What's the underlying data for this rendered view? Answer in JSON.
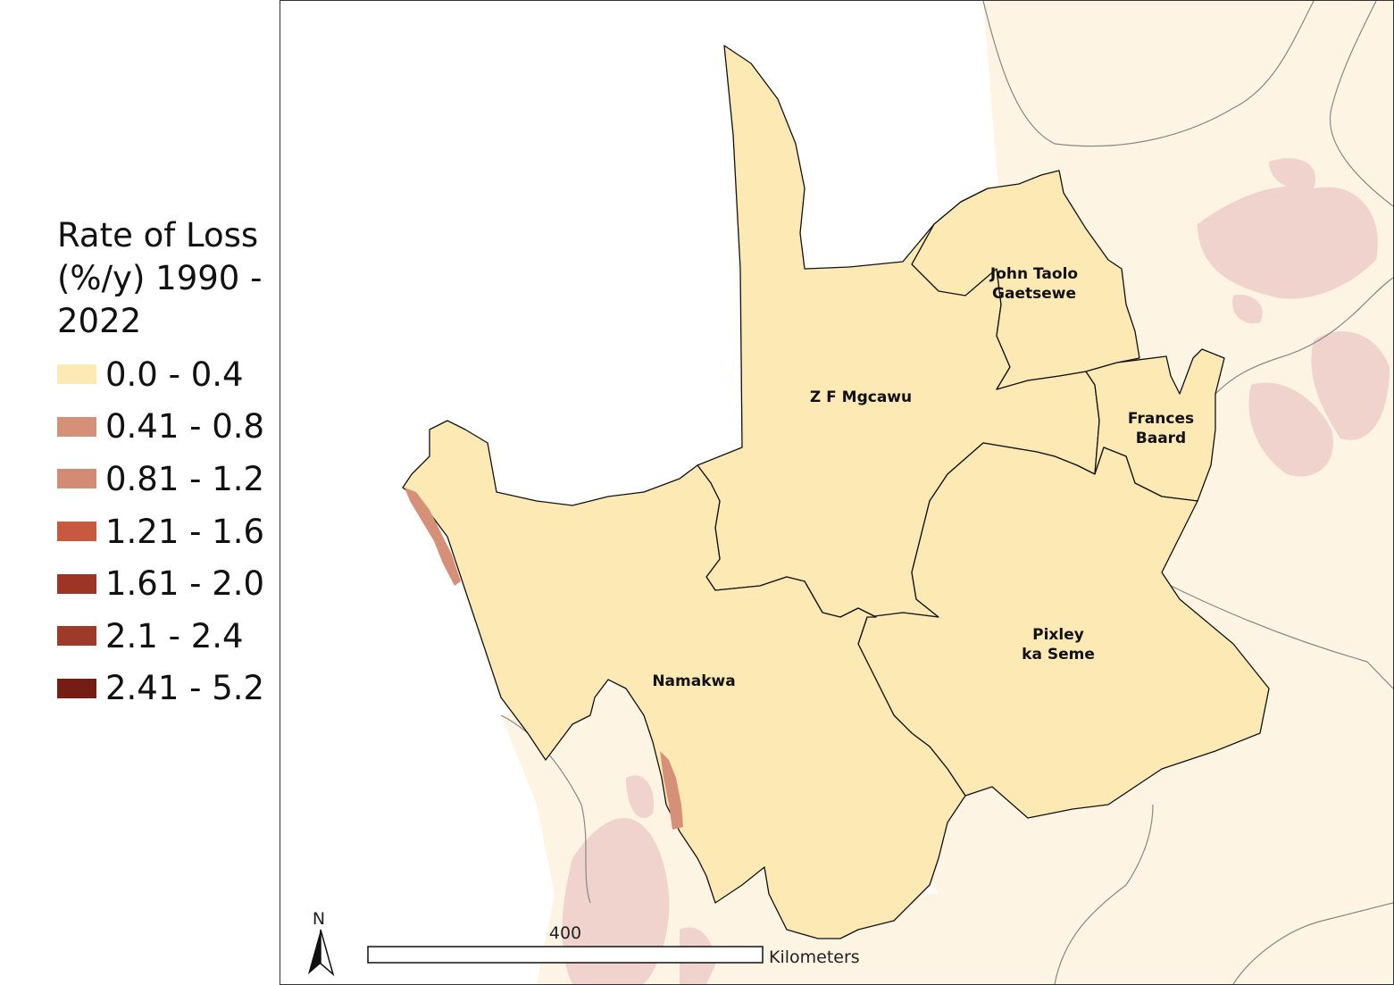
{
  "legend": {
    "title_lines": [
      "Rate of Loss",
      "(%/y) 1990 -",
      "2022"
    ],
    "items": [
      {
        "label": "0.0 - 0.4",
        "color": "#fde9b3"
      },
      {
        "label": "0.41 - 0.8",
        "color": "#d69078"
      },
      {
        "label": "0.81 - 1.2",
        "color": "#d48b73"
      },
      {
        "label": "1.21 - 1.6",
        "color": "#c75a3e"
      },
      {
        "label": "1.61 - 2.0",
        "color": "#9d3527"
      },
      {
        "label": "2.1 - 2.4",
        "color": "#9e3a2a"
      },
      {
        "label": "2.41 - 5.2",
        "color": "#751c14"
      }
    ]
  },
  "map": {
    "colors": {
      "province_fill": "#fde9b3",
      "surrounding_fill": "#fdf4e3",
      "outside_loss_fill": "#f0d3cc",
      "boundary_stroke": "#111111",
      "outside_boundary_stroke": "#888888"
    },
    "regions": [
      {
        "key": "zf_mgcawu",
        "lines": [
          "Z F Mgcawu"
        ]
      },
      {
        "key": "john_taolo",
        "lines": [
          "John Taolo",
          "Gaetsewe"
        ]
      },
      {
        "key": "frances",
        "lines": [
          "Frances",
          "Baard"
        ]
      },
      {
        "key": "pixley",
        "lines": [
          "Pixley",
          "ka Seme"
        ]
      },
      {
        "key": "namakwa",
        "lines": [
          "Namakwa"
        ]
      }
    ],
    "north_arrow": {
      "label": "N",
      "icon": "north-arrow-icon"
    },
    "scale_bar": {
      "tick_label": "400",
      "unit_label": "Kilometers"
    }
  }
}
